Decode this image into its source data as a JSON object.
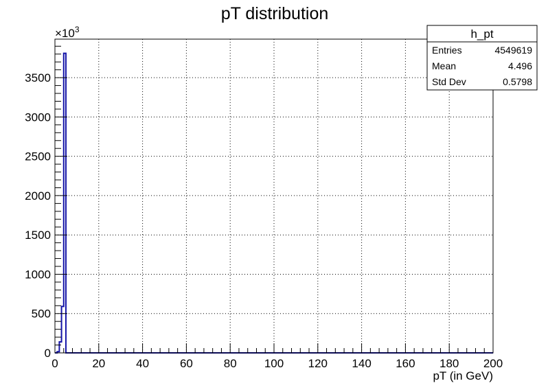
{
  "chart_data": {
    "type": "bar",
    "title": "pT distribution",
    "xlabel": "pT (in GeV)",
    "ylabel": "",
    "y_multiplier_label": "×10",
    "y_multiplier_exponent": "3",
    "xlim": [
      0,
      200
    ],
    "ylim": [
      0,
      3990
    ],
    "x_ticks": [
      0,
      20,
      40,
      60,
      80,
      100,
      120,
      140,
      160,
      180,
      200
    ],
    "x_tick_labels": [
      "0",
      "20",
      "40",
      "60",
      "80",
      "100",
      "120",
      "140",
      "160",
      "180",
      "200"
    ],
    "y_ticks": [
      0,
      500,
      1000,
      1500,
      2000,
      2500,
      3000,
      3500
    ],
    "y_tick_labels": [
      "0",
      "500",
      "1000",
      "1500",
      "2000",
      "2500",
      "3000",
      "3500"
    ],
    "grid": true,
    "bin_width": 1,
    "bins": [
      {
        "x_low": 0,
        "x_high": 1,
        "value": 0
      },
      {
        "x_low": 1,
        "x_high": 2,
        "value": 15
      },
      {
        "x_low": 2,
        "x_high": 3,
        "value": 140
      },
      {
        "x_low": 3,
        "x_high": 4,
        "value": 590
      },
      {
        "x_low": 4,
        "x_high": 5,
        "value": 3810
      },
      {
        "x_low": 5,
        "x_high": 200,
        "value": 0
      }
    ],
    "line_color": "#1414a8",
    "stats_box": {
      "name": "h_pt",
      "rows": [
        {
          "label": "Entries",
          "value": "4549619"
        },
        {
          "label": "Mean",
          "value": "4.496"
        },
        {
          "label": "Std Dev",
          "value": "0.5798"
        }
      ],
      "position": "top-right"
    }
  }
}
